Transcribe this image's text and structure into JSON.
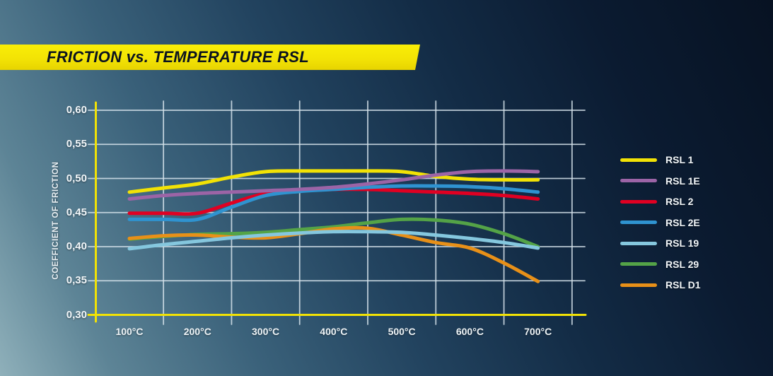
{
  "title": "FRICTION vs. TEMPERATURE RSL",
  "colors": {
    "accent_yellow": "#f2e205",
    "grid_line": "rgba(214,227,235,0.85)",
    "background_bottom_left": "#8fb0ba",
    "background_top_right": "#071222",
    "text": "#f2f6f8"
  },
  "chart_data": {
    "type": "line",
    "title": "FRICTION vs. TEMPERATURE RSL",
    "xlabel": "",
    "ylabel": "COEFFICIENT OF FRICTION",
    "x_unit": "°C",
    "xlim": [
      50,
      770
    ],
    "ylim": [
      0.3,
      0.62
    ],
    "grid": true,
    "legend_position": "right",
    "x_ticks": {
      "values": [
        100,
        200,
        300,
        400,
        500,
        600,
        700
      ],
      "labels": [
        "100°C",
        "200°C",
        "300°C",
        "400°C",
        "500°C",
        "600°C",
        "700°C"
      ]
    },
    "y_ticks": {
      "values": [
        0.6,
        0.55,
        0.5,
        0.45,
        0.4,
        0.35,
        0.3
      ],
      "labels": [
        "0,60",
        "0,55",
        "0,50",
        "0,45",
        "0,40",
        "0,35",
        "0,30"
      ]
    },
    "gridline_temps": [
      150,
      250,
      350,
      450,
      550,
      650,
      750
    ],
    "x": [
      100,
      150,
      200,
      250,
      300,
      350,
      400,
      450,
      500,
      550,
      600,
      650,
      700
    ],
    "series": [
      {
        "name": "RSL 1",
        "color": "#f2e205",
        "values": [
          0.48,
          0.486,
          0.492,
          0.502,
          0.51,
          0.511,
          0.511,
          0.511,
          0.51,
          0.503,
          0.499,
          0.498,
          0.498
        ]
      },
      {
        "name": "RSL 1E",
        "color": "#9c64a6",
        "values": [
          0.47,
          0.475,
          0.478,
          0.48,
          0.482,
          0.484,
          0.487,
          0.492,
          0.498,
          0.505,
          0.51,
          0.511,
          0.51
        ]
      },
      {
        "name": "RSL 2",
        "color": "#e00022",
        "values": [
          0.449,
          0.449,
          0.449,
          0.464,
          0.478,
          0.482,
          0.484,
          0.484,
          0.482,
          0.48,
          0.478,
          0.475,
          0.47
        ]
      },
      {
        "name": "RSL 2E",
        "color": "#2f93d0",
        "values": [
          0.44,
          0.44,
          0.44,
          0.458,
          0.475,
          0.481,
          0.484,
          0.487,
          0.489,
          0.489,
          0.488,
          0.485,
          0.48
        ]
      },
      {
        "name": "RSL 19",
        "color": "#85c7de",
        "values": [
          0.397,
          0.403,
          0.408,
          0.413,
          0.417,
          0.42,
          0.422,
          0.422,
          0.421,
          0.417,
          0.412,
          0.406,
          0.398
        ]
      },
      {
        "name": "RSL 29",
        "color": "#54a347",
        "values": [
          0.411,
          0.415,
          0.418,
          0.419,
          0.421,
          0.425,
          0.429,
          0.435,
          0.44,
          0.439,
          0.433,
          0.419,
          0.4
        ]
      },
      {
        "name": "RSL D1",
        "color": "#e89018",
        "values": [
          0.412,
          0.416,
          0.417,
          0.414,
          0.413,
          0.419,
          0.426,
          0.427,
          0.417,
          0.406,
          0.398,
          0.376,
          0.349
        ]
      }
    ]
  }
}
